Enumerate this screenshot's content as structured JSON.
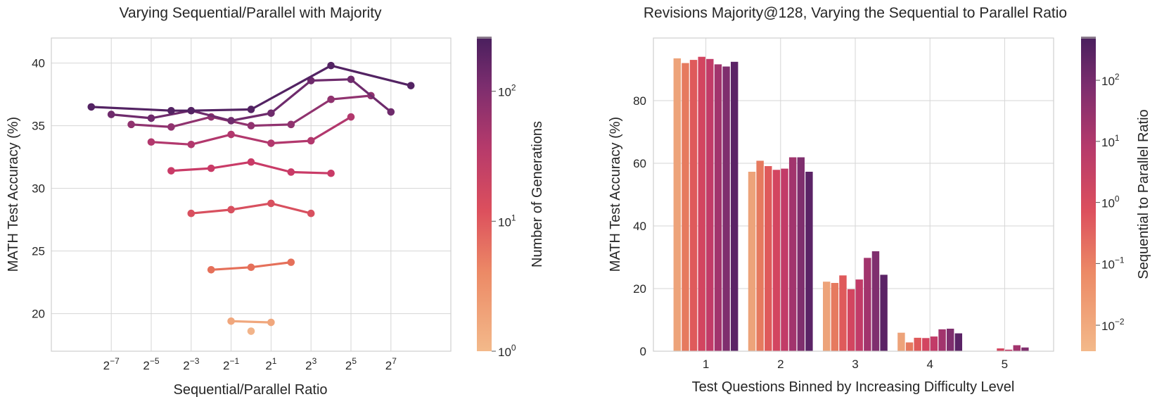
{
  "chart_data": [
    {
      "type": "line",
      "title": "Varying Sequential/Parallel with Majority",
      "xlabel": "Sequential/Parallel Ratio",
      "ylabel": "MATH Test Accuracy (%)",
      "xscale": "log2",
      "xlim_log2": [
        -10,
        10
      ],
      "ylim": [
        17,
        42
      ],
      "x_ticks": [
        {
          "base": "2",
          "exp": "−7",
          "log2": -7
        },
        {
          "base": "2",
          "exp": "−5",
          "log2": -5
        },
        {
          "base": "2",
          "exp": "−3",
          "log2": -3
        },
        {
          "base": "2",
          "exp": "−1",
          "log2": -1
        },
        {
          "base": "2",
          "exp": "1",
          "log2": 1
        },
        {
          "base": "2",
          "exp": "3",
          "log2": 3
        },
        {
          "base": "2",
          "exp": "5",
          "log2": 5
        },
        {
          "base": "2",
          "exp": "7",
          "log2": 7
        }
      ],
      "y_ticks": [
        {
          "value": 20,
          "label": "20"
        },
        {
          "value": 25,
          "label": "25"
        },
        {
          "value": 30,
          "label": "30"
        },
        {
          "value": 35,
          "label": "35"
        },
        {
          "value": 40,
          "label": "40"
        }
      ],
      "colorbar": {
        "label": "Number of Generations",
        "scale": "log",
        "ticks": [
          {
            "base": "10",
            "exp": "0",
            "frac": 0.0
          },
          {
            "base": "10",
            "exp": "1",
            "frac": 0.415
          },
          {
            "base": "10",
            "exp": "2",
            "frac": 0.83
          }
        ]
      },
      "series": [
        {
          "generations": 2,
          "color": "#f0a77d",
          "x_log2": [
            -1,
            1
          ],
          "y": [
            19.4,
            19.3
          ]
        },
        {
          "generations": 4,
          "color": "#e5705a",
          "x_log2": [
            -2,
            0,
            2
          ],
          "y": [
            23.5,
            23.7,
            24.1
          ]
        },
        {
          "generations": 8,
          "color": "#d8505f",
          "x_log2": [
            -3,
            -1,
            1,
            3
          ],
          "y": [
            28.0,
            28.3,
            28.8,
            28.0
          ]
        },
        {
          "generations": 16,
          "color": "#c93b67",
          "x_log2": [
            -4,
            -2,
            0,
            2,
            4
          ],
          "y": [
            31.4,
            31.6,
            32.1,
            31.3,
            31.2
          ]
        },
        {
          "generations": 32,
          "color": "#b2386d",
          "x_log2": [
            -5,
            -3,
            -1,
            1,
            3,
            5
          ],
          "y": [
            33.7,
            33.5,
            34.3,
            33.6,
            33.8,
            35.7
          ]
        },
        {
          "generations": 64,
          "color": "#90336f",
          "x_log2": [
            -6,
            -4,
            -2,
            0,
            2,
            4,
            6
          ],
          "y": [
            35.1,
            34.9,
            35.7,
            35.0,
            35.1,
            37.1,
            37.4
          ]
        },
        {
          "generations": 128,
          "color": "#6e2b6c",
          "x_log2": [
            -7,
            -5,
            -3,
            -1,
            1,
            3,
            5,
            7
          ],
          "y": [
            35.9,
            35.6,
            36.2,
            35.4,
            36.0,
            38.6,
            38.7,
            36.1
          ]
        },
        {
          "generations": 256,
          "color": "#532363",
          "x_log2": [
            -8,
            -4,
            -3,
            0,
            4,
            8
          ],
          "y": [
            36.5,
            36.2,
            36.2,
            36.3,
            39.8,
            38.2
          ]
        }
      ],
      "extra_points": [
        {
          "generations": 1,
          "color": "#f2b48a",
          "x_log2": 0,
          "y": 18.6
        }
      ]
    },
    {
      "type": "bar",
      "title": "Revisions Majority@128, Varying the Sequential to Parallel Ratio",
      "xlabel": "Test Questions Binned by Increasing Difficulty Level",
      "ylabel": "MATH Test Accuracy (%)",
      "ylim": [
        0,
        100
      ],
      "categories": [
        "1",
        "2",
        "3",
        "4",
        "5"
      ],
      "y_ticks": [
        {
          "value": 0,
          "label": "0"
        },
        {
          "value": 20,
          "label": "20"
        },
        {
          "value": 40,
          "label": "40"
        },
        {
          "value": 60,
          "label": "60"
        },
        {
          "value": 80,
          "label": "80"
        }
      ],
      "colorbar": {
        "label": "Sequential to Parallel Ratio",
        "scale": "log",
        "ticks": [
          {
            "base": "10",
            "exp": "−2",
            "frac": 0.083
          },
          {
            "base": "10",
            "exp": "−1",
            "frac": 0.28
          },
          {
            "base": "10",
            "exp": "0",
            "frac": 0.475
          },
          {
            "base": "10",
            "exp": "1",
            "frac": 0.67
          },
          {
            "base": "10",
            "exp": "2",
            "frac": 0.865
          }
        ]
      },
      "series": [
        {
          "name": "ratio 1/128",
          "color": "#eda37a",
          "values": [
            93.5,
            57.3,
            22.2,
            5.9,
            0.0
          ]
        },
        {
          "name": "ratio 1/64",
          "color": "#e67a5f",
          "values": [
            92.0,
            60.8,
            21.8,
            2.8,
            0.0
          ]
        },
        {
          "name": "ratio 1/16",
          "color": "#df5a5b",
          "values": [
            93.0,
            59.1,
            24.2,
            4.3,
            0.0
          ]
        },
        {
          "name": "ratio 1/4",
          "color": "#d34560",
          "values": [
            94.0,
            57.9,
            19.8,
            4.2,
            0.9
          ]
        },
        {
          "name": "ratio 1",
          "color": "#c23b68",
          "values": [
            93.3,
            58.3,
            22.9,
            4.7,
            0.5
          ]
        },
        {
          "name": "ratio 4",
          "color": "#a2346d",
          "values": [
            91.6,
            61.9,
            29.8,
            7.0,
            1.9
          ]
        },
        {
          "name": "ratio 16",
          "color": "#7f2f6e",
          "values": [
            90.9,
            61.9,
            31.9,
            7.2,
            1.2
          ]
        },
        {
          "name": "ratio 128",
          "color": "#5b2366",
          "values": [
            92.4,
            57.3,
            24.4,
            5.7,
            0.0
          ]
        }
      ]
    }
  ]
}
